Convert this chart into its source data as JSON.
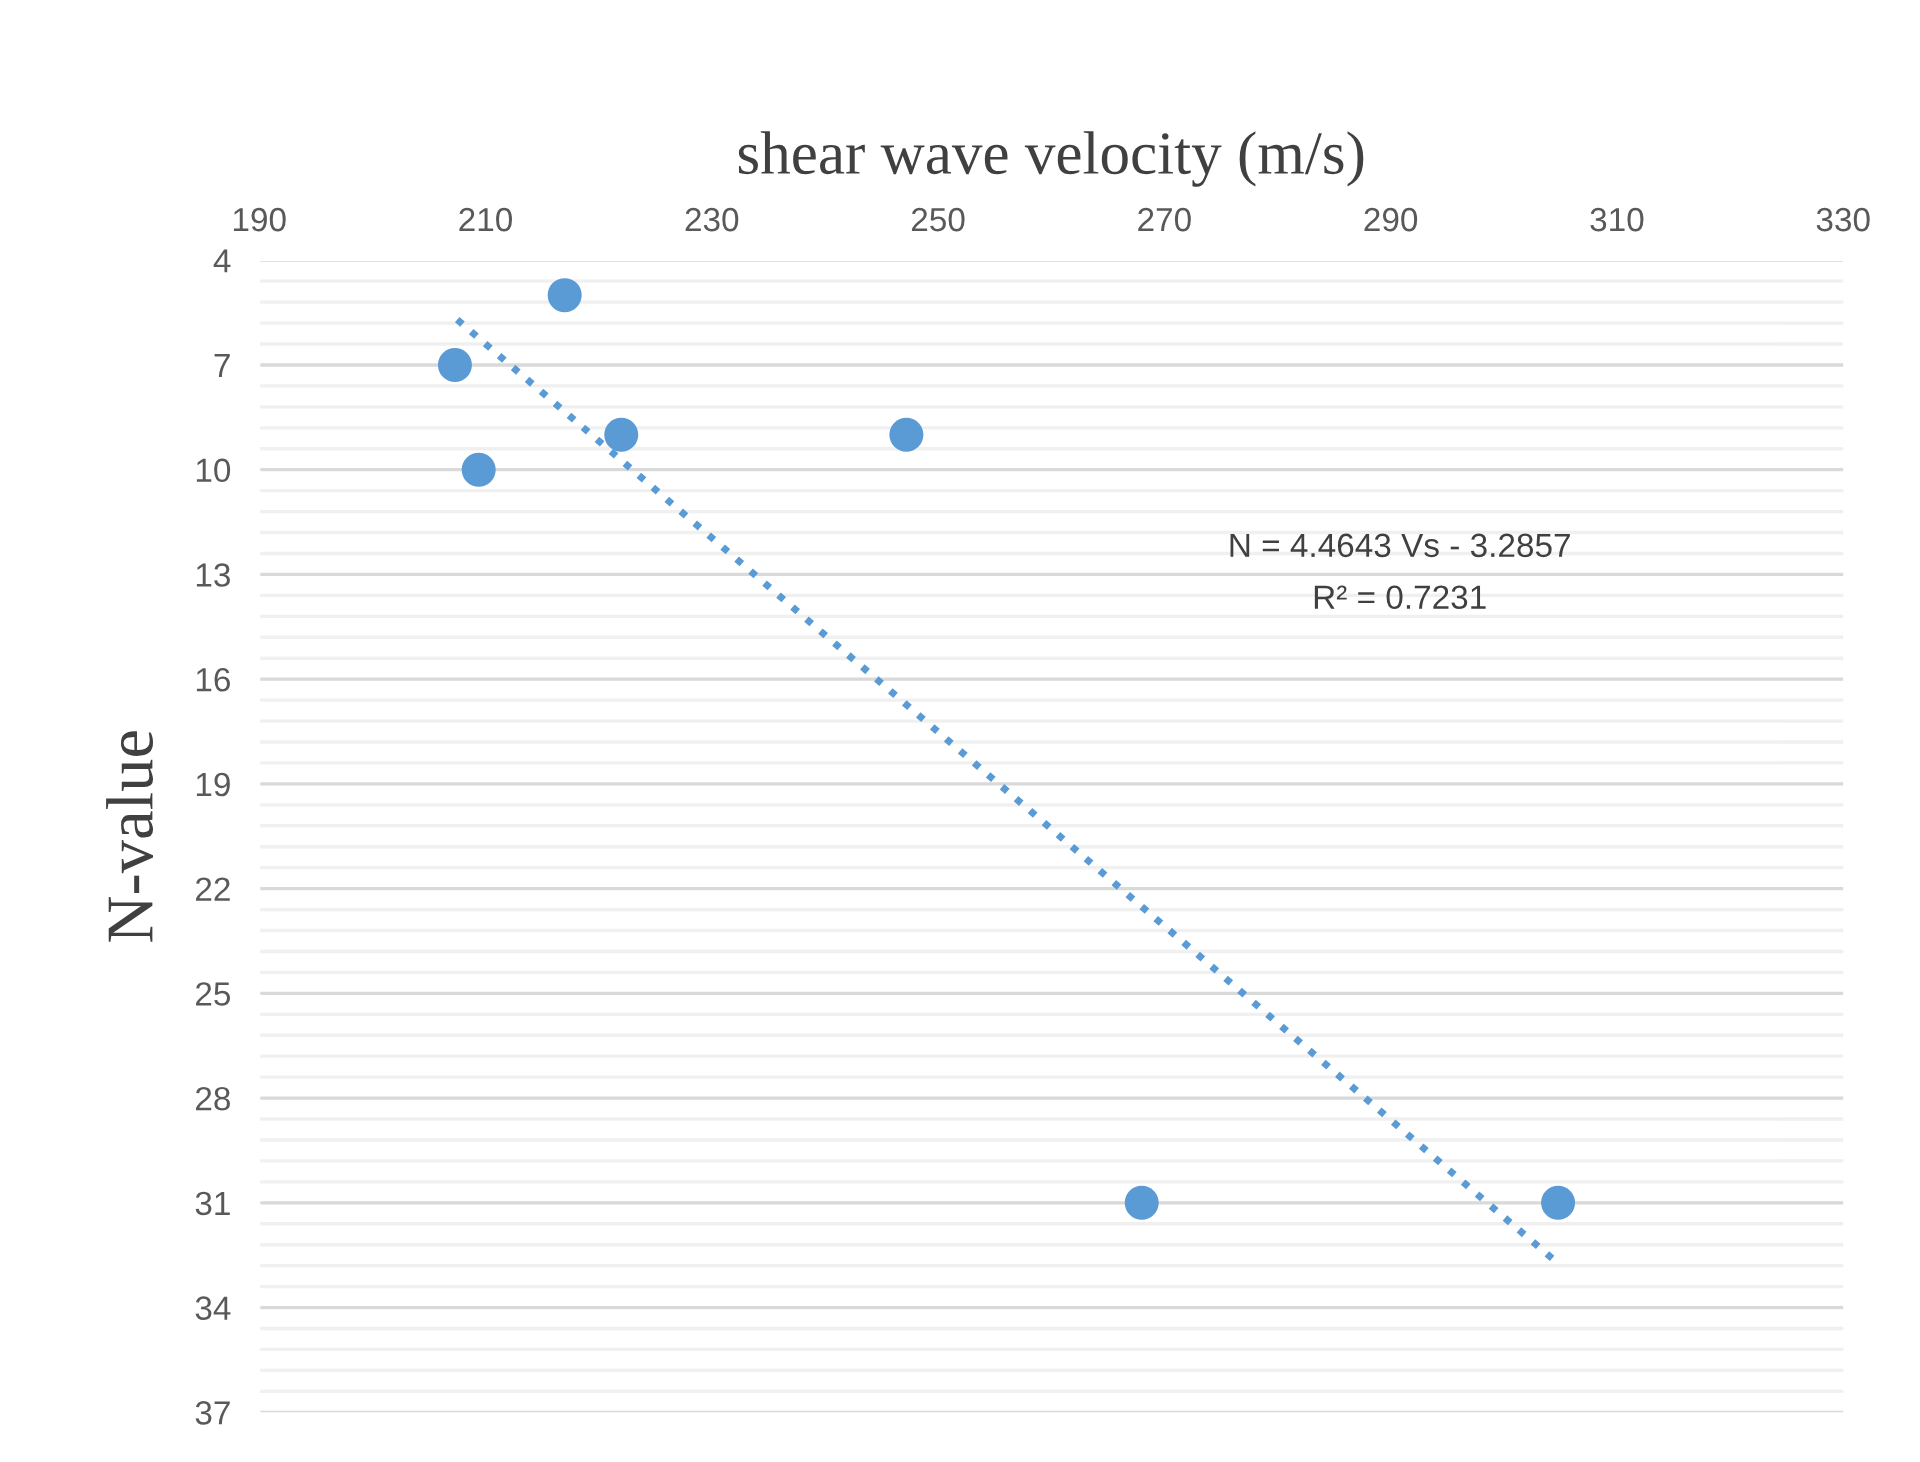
{
  "chart_data": {
    "type": "scatter",
    "xlabel": "shear wave velocity (m/s)",
    "ylabel": "N-value",
    "xlim": [
      190,
      330
    ],
    "xticks": [
      190,
      210,
      230,
      250,
      270,
      290,
      310,
      330
    ],
    "ylim": [
      37,
      4
    ],
    "yticks": [
      4,
      7,
      10,
      13,
      16,
      19,
      22,
      25,
      28,
      31,
      34,
      37
    ],
    "grid": "y",
    "marker": "circle",
    "legend": false,
    "series": [
      {
        "color": "#5b9bd5",
        "x": [
          207.3,
          209.4,
          217,
          222,
          247.2,
          268,
          304.8
        ],
        "values": [
          7,
          10,
          5,
          9,
          9,
          31,
          31
        ]
      },
      {
        "type": "line",
        "color": "#5b9bd5",
        "line_style": "dotted",
        "marker": "none",
        "x": [
          207.5,
          304.3
        ],
        "values": [
          5.7,
          32.6
        ]
      }
    ],
    "annotations": [
      "N = 4.4643 Vs - 3.2857",
      "R² = 0.7231"
    ]
  }
}
